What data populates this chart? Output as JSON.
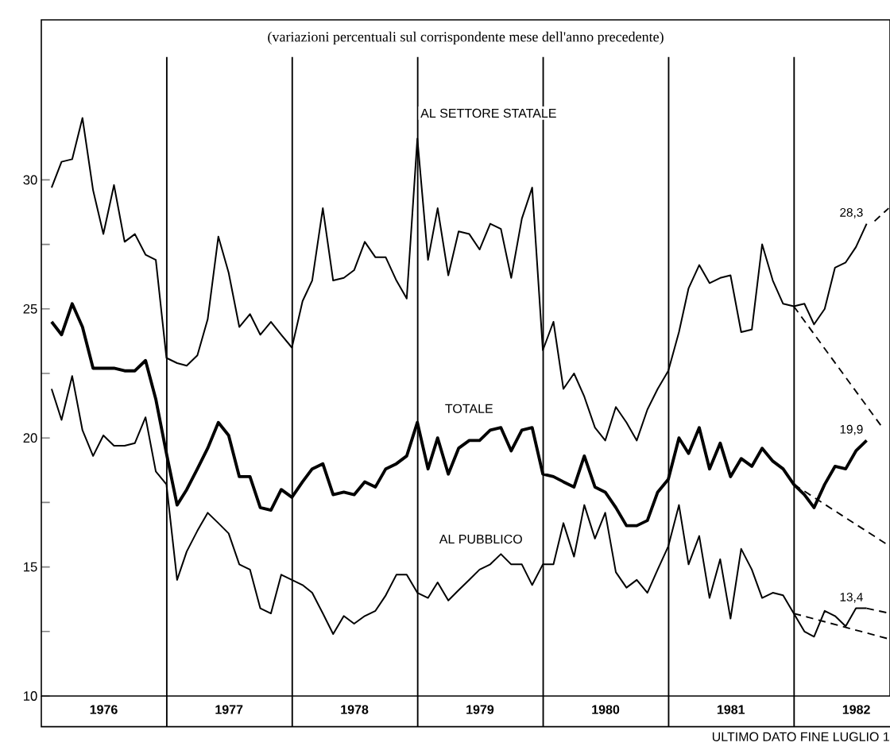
{
  "chart_data": {
    "type": "line",
    "title": "(variazioni percentuali sul corrispondente mese dell'anno precedente)",
    "x": [
      "1976-01-31",
      "1976-02-29",
      "1976-03-31",
      "1976-04-30",
      "1976-05-31",
      "1976-06-30",
      "1976-07-31",
      "1976-08-31",
      "1976-09-30",
      "1976-10-31",
      "1976-11-30",
      "1976-12-31",
      "1977-01-31",
      "1977-02-28",
      "1977-03-31",
      "1977-04-30",
      "1977-05-31",
      "1977-06-30",
      "1977-07-31",
      "1977-08-31",
      "1977-09-30",
      "1977-10-31",
      "1977-11-30",
      "1977-12-31",
      "1978-01-31",
      "1978-02-28",
      "1978-03-31",
      "1978-04-30",
      "1978-05-31",
      "1978-06-30",
      "1978-07-31",
      "1978-08-31",
      "1978-09-30",
      "1978-10-31",
      "1978-11-30",
      "1978-12-31",
      "1979-01-31",
      "1979-02-28",
      "1979-03-31",
      "1979-04-30",
      "1979-05-31",
      "1979-06-30",
      "1979-07-31",
      "1979-08-31",
      "1979-09-30",
      "1979-10-31",
      "1979-11-30",
      "1979-12-31",
      "1980-01-31",
      "1980-02-29",
      "1980-03-31",
      "1980-04-30",
      "1980-05-31",
      "1980-06-30",
      "1980-07-31",
      "1980-08-31",
      "1980-09-30",
      "1980-10-31",
      "1980-11-30",
      "1980-12-31",
      "1981-01-31",
      "1981-02-28",
      "1981-03-31",
      "1981-04-30",
      "1981-05-31",
      "1981-06-30",
      "1981-07-31",
      "1981-08-31",
      "1981-09-30",
      "1981-10-31",
      "1981-11-30",
      "1981-12-31",
      "1982-01-31",
      "1982-02-28",
      "1982-03-31",
      "1982-04-30",
      "1982-05-31",
      "1982-06-30",
      "1982-07-31"
    ],
    "xlim": [
      "1976-01-01",
      "1982-10-07"
    ],
    "xticks": [
      {
        "value": "1976-07-01",
        "label": "1976"
      },
      {
        "value": "1977-07-01",
        "label": "1977"
      },
      {
        "value": "1978-07-01",
        "label": "1978"
      },
      {
        "value": "1979-07-01",
        "label": "1979"
      },
      {
        "value": "1980-07-01",
        "label": "1980"
      },
      {
        "value": "1981-07-01",
        "label": "1981"
      },
      {
        "value": "1982-07-01",
        "label": "1982"
      }
    ],
    "ylim": [
      10,
      36.2
    ],
    "yticks": [
      10,
      {
        "value": 12.5,
        "label": null
      },
      15,
      {
        "value": 17.5,
        "label": null
      },
      20,
      {
        "value": 22.5,
        "label": null
      },
      25,
      {
        "value": 27.5,
        "label": null
      },
      30
    ],
    "series": [
      {
        "name": "AL SETTORE STATALE",
        "color": "#000000",
        "values": [
          29.7,
          30.7,
          30.8,
          32.4,
          29.6,
          27.9,
          29.8,
          27.6,
          27.9,
          27.1,
          26.9,
          23.1,
          22.9,
          22.8,
          23.2,
          24.6,
          27.8,
          26.4,
          24.3,
          24.8,
          24.0,
          24.5,
          24.0,
          23.5,
          25.3,
          26.1,
          28.9,
          26.1,
          26.2,
          26.5,
          27.6,
          27.0,
          27.0,
          26.1,
          25.4,
          31.6,
          26.9,
          28.9,
          26.3,
          28.0,
          27.9,
          27.3,
          28.3,
          28.1,
          26.2,
          28.5,
          29.7,
          23.4,
          24.5,
          21.9,
          22.5,
          21.6,
          20.4,
          19.9,
          21.2,
          20.6,
          19.9,
          21.1,
          21.9,
          22.6,
          24.1,
          25.8,
          26.7,
          26.0,
          26.2,
          26.3,
          24.1,
          24.2,
          27.5,
          26.1,
          25.2,
          25.1,
          25.2,
          24.4,
          25.0,
          26.6,
          26.8,
          27.4,
          28.3
        ]
      },
      {
        "name": "TOTALE",
        "color": "#000000",
        "values": [
          24.5,
          24.0,
          25.2,
          24.3,
          22.7,
          22.7,
          22.7,
          22.6,
          22.6,
          23.0,
          21.5,
          19.4,
          17.4,
          18.0,
          18.8,
          19.6,
          20.6,
          20.1,
          18.5,
          18.5,
          17.3,
          17.2,
          18.0,
          17.7,
          18.3,
          18.8,
          19.0,
          17.8,
          17.9,
          17.8,
          18.3,
          18.1,
          18.8,
          19.0,
          19.3,
          20.6,
          18.8,
          20.0,
          18.6,
          19.6,
          19.9,
          19.9,
          20.3,
          20.4,
          19.5,
          20.3,
          20.4,
          18.6,
          18.5,
          18.3,
          18.1,
          19.3,
          18.1,
          17.9,
          17.3,
          16.6,
          16.6,
          16.8,
          17.9,
          18.4,
          20.0,
          19.4,
          20.4,
          18.8,
          19.8,
          18.5,
          19.2,
          18.9,
          19.6,
          19.1,
          18.8,
          18.2,
          17.8,
          17.3,
          18.2,
          18.9,
          18.8,
          19.5,
          19.9
        ]
      },
      {
        "name": "AL PUBBLICO",
        "color": "#000000",
        "values": [
          21.9,
          20.7,
          22.4,
          20.3,
          19.3,
          20.1,
          19.7,
          19.7,
          19.8,
          20.8,
          18.7,
          18.2,
          14.5,
          15.6,
          16.4,
          17.1,
          16.7,
          16.3,
          15.1,
          14.9,
          13.4,
          13.2,
          14.7,
          14.5,
          14.3,
          14.0,
          13.2,
          12.4,
          13.1,
          12.8,
          13.1,
          13.3,
          13.9,
          14.7,
          14.7,
          14.0,
          13.8,
          14.4,
          13.7,
          14.1,
          14.5,
          14.9,
          15.1,
          15.5,
          15.1,
          15.1,
          14.3,
          15.1,
          15.1,
          16.7,
          15.4,
          17.4,
          16.1,
          17.1,
          14.8,
          14.2,
          14.5,
          14.0,
          14.9,
          15.8,
          17.4,
          15.1,
          16.2,
          13.8,
          15.3,
          13.0,
          15.7,
          14.9,
          13.8,
          14.0,
          13.9,
          13.2,
          12.5,
          12.3,
          13.3,
          13.1,
          12.7,
          13.4,
          13.4
        ]
      },
      {
        "color": "#000000",
        "line_style": "dashed",
        "x": [
          "1981-12-31",
          "1982-09-15"
        ],
        "values": [
          25.1,
          20.4
        ]
      },
      {
        "color": "#000000",
        "line_style": "dashed",
        "x": [
          "1982-08-23",
          "1982-10-03"
        ],
        "values": [
          28.4,
          28.9
        ]
      },
      {
        "color": "#000000",
        "line_style": "dashed",
        "x": [
          "1981-12-31",
          "1982-10-07"
        ],
        "values": [
          18.2,
          15.8
        ]
      },
      {
        "color": "#000000",
        "line_style": "dashed",
        "x": [
          "1981-12-31",
          "1982-10-07"
        ],
        "values": [
          13.2,
          12.2
        ]
      },
      {
        "color": "#000000",
        "line_style": "dashed",
        "x": [
          "1982-07-31",
          "1982-10-07"
        ],
        "values": [
          13.4,
          13.2
        ]
      }
    ],
    "ref_lines": [
      {
        "axis": "x",
        "value": "1977-01-01"
      },
      {
        "axis": "x",
        "value": "1978-01-01"
      },
      {
        "axis": "x",
        "value": "1979-01-01"
      },
      {
        "axis": "x",
        "value": "1980-01-01"
      },
      {
        "axis": "x",
        "value": "1981-01-01"
      },
      {
        "axis": "x",
        "value": "1982-01-01"
      }
    ],
    "annotations": [
      {
        "text": "28,3",
        "x": "1982-07-31",
        "y": 28.3
      },
      {
        "text": "19,9",
        "x": "1982-07-31",
        "y": 19.9
      },
      {
        "text": "13,4",
        "x": "1982-07-31",
        "y": 13.4
      },
      "ULTIMO DATO FINE LUGLIO 1"
    ]
  }
}
